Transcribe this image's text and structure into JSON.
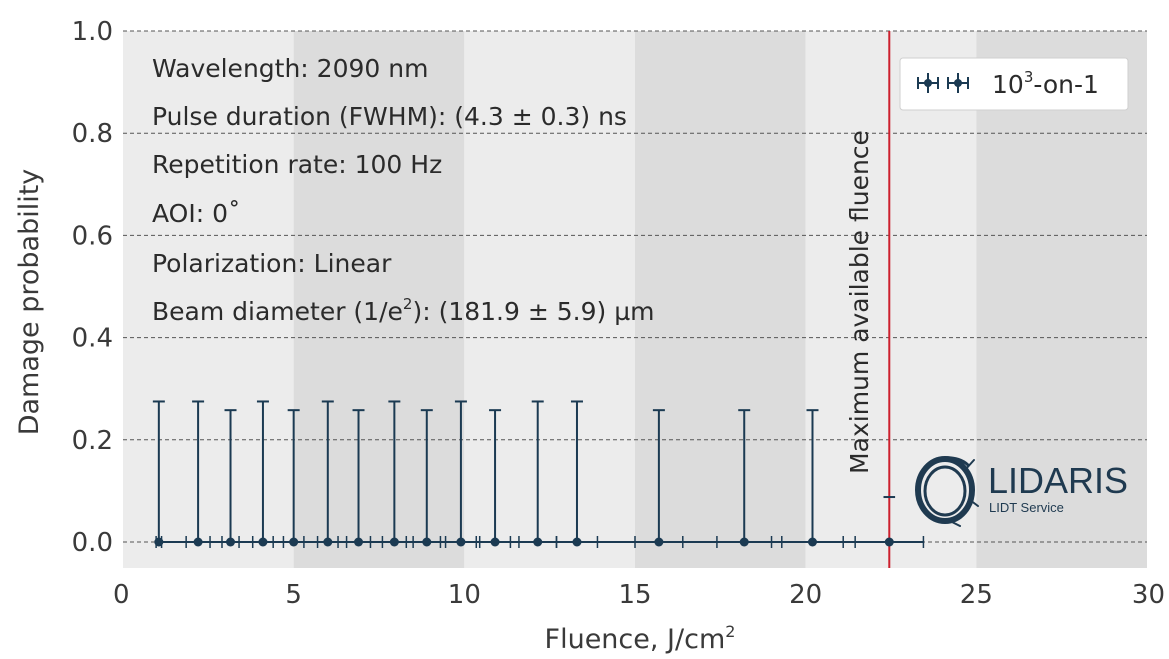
{
  "chart_data": {
    "type": "scatter",
    "xlabel": "Fluence, J/cm",
    "xlabel_sup": "2",
    "ylabel": "Damage probability",
    "xlim": [
      0,
      30
    ],
    "ylim": [
      -0.05,
      1.0
    ],
    "xticks": [
      0,
      5,
      10,
      15,
      20,
      25,
      30
    ],
    "yticks": [
      0.0,
      0.2,
      0.4,
      0.6,
      0.8,
      1.0
    ],
    "xtick_labels": [
      "0",
      "5",
      "10",
      "15",
      "20",
      "25",
      "30"
    ],
    "ytick_labels": [
      "0.0",
      "0.2",
      "0.4",
      "0.6",
      "0.8",
      "1.0"
    ],
    "grid": "horizontal dashed",
    "background_bands": [
      {
        "from": 0,
        "to": 5,
        "color": "#ececec"
      },
      {
        "from": 5,
        "to": 10,
        "color": "#dcdcdc"
      },
      {
        "from": 10,
        "to": 15,
        "color": "#ececec"
      },
      {
        "from": 15,
        "to": 20,
        "color": "#dcdcdc"
      },
      {
        "from": 20,
        "to": 25,
        "color": "#ececec"
      },
      {
        "from": 25,
        "to": 30,
        "color": "#dcdcdc"
      }
    ],
    "series": [
      {
        "name": "10³-on-1",
        "color": "#1b3a52",
        "points": [
          {
            "x": 1.05,
            "y": 0.0,
            "xerr": 0.08,
            "yerr_up": 0.275
          },
          {
            "x": 2.2,
            "y": 0.0,
            "xerr": 0.35,
            "yerr_up": 0.275
          },
          {
            "x": 3.15,
            "y": 0.0,
            "xerr": 0.25,
            "yerr_up": 0.258
          },
          {
            "x": 4.1,
            "y": 0.0,
            "xerr": 0.3,
            "yerr_up": 0.275
          },
          {
            "x": 5.0,
            "y": 0.0,
            "xerr": 0.3,
            "yerr_up": 0.258
          },
          {
            "x": 6.0,
            "y": 0.0,
            "xerr": 0.3,
            "yerr_up": 0.275
          },
          {
            "x": 6.9,
            "y": 0.0,
            "xerr": 0.35,
            "yerr_up": 0.258
          },
          {
            "x": 7.95,
            "y": 0.0,
            "xerr": 0.35,
            "yerr_up": 0.275
          },
          {
            "x": 8.9,
            "y": 0.0,
            "xerr": 0.4,
            "yerr_up": 0.258
          },
          {
            "x": 9.9,
            "y": 0.0,
            "xerr": 0.45,
            "yerr_up": 0.275
          },
          {
            "x": 10.9,
            "y": 0.0,
            "xerr": 0.45,
            "yerr_up": 0.258
          },
          {
            "x": 12.15,
            "y": 0.0,
            "xerr": 0.55,
            "yerr_up": 0.275
          },
          {
            "x": 13.3,
            "y": 0.0,
            "xerr": 0.6,
            "yerr_up": 0.275
          },
          {
            "x": 15.7,
            "y": 0.0,
            "xerr": 0.7,
            "yerr_up": 0.258
          },
          {
            "x": 18.2,
            "y": 0.0,
            "xerr": 0.8,
            "yerr_up": 0.258
          },
          {
            "x": 20.2,
            "y": 0.0,
            "xerr": 0.9,
            "yerr_up": 0.258
          },
          {
            "x": 22.45,
            "y": 0.0,
            "xerr": 1.0,
            "yerr_up": 0.0
          }
        ],
        "upper_caps": [
          {
            "x": 22.45,
            "y": 0.088,
            "halfwidth": 0.17
          }
        ]
      }
    ],
    "vertical_line": {
      "x": 22.45,
      "color": "#cc1f2d",
      "label": "Maximum available fluence"
    },
    "legend": {
      "position": "top-right",
      "label_base": "10",
      "label_sup": "3",
      "label_rest": "-on-1"
    },
    "annotations": [
      "Wavelength: 2090 nm",
      "Pulse duration (FWHM): (4.3 ± 0.3) ns",
      "Repetition rate: 100 Hz",
      "AOI: 0˚",
      "Polarization: Linear"
    ],
    "beam_annotation": {
      "prefix": "Beam diameter (1/e",
      "sup": "2",
      "suffix": "): (181.9 ± 5.9) µm"
    },
    "logo": {
      "title": "LIDARIS",
      "subtitle": "LIDT Service"
    }
  }
}
